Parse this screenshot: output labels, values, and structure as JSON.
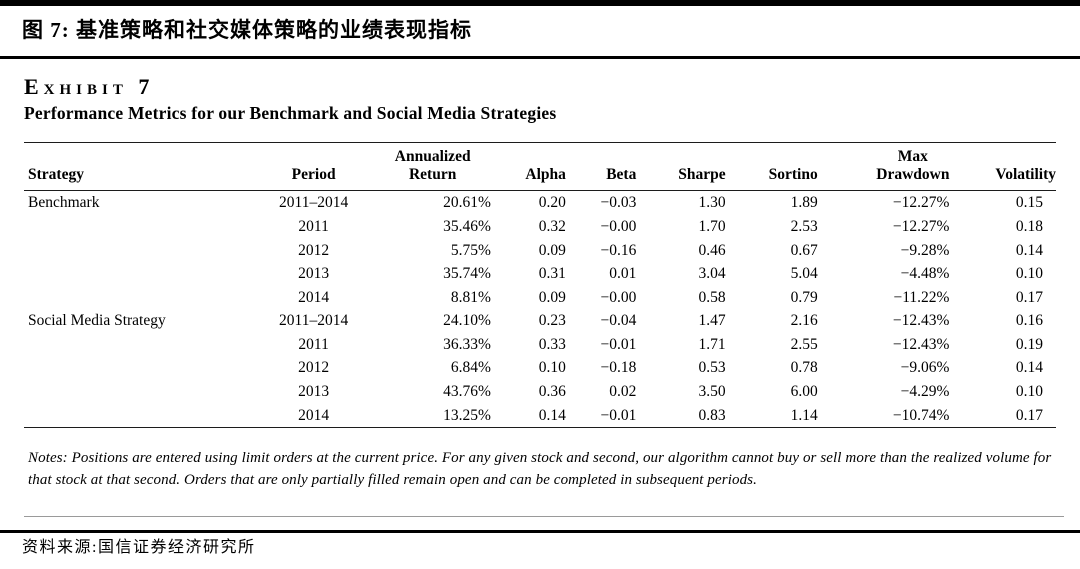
{
  "report": {
    "figure_title": "图 7: 基准策略和社交媒体策略的业绩表现指标",
    "source": "资料来源:国信证券经济研究所"
  },
  "exhibit": {
    "label": "Exhibit 7",
    "subtitle": "Performance Metrics for our Benchmark and Social Media Strategies",
    "notes": "Notes: Positions are entered using limit orders at the current price. For any given stock and second, our algorithm cannot buy or sell more than the realized volume for that stock at that second. Orders that are only partially filled remain open and can be completed in subsequent periods.",
    "table": {
      "columns": [
        {
          "line1": "",
          "line2": "Strategy"
        },
        {
          "line1": "",
          "line2": "Period"
        },
        {
          "line1": "Annualized",
          "line2": "Return"
        },
        {
          "line1": "",
          "line2": "Alpha"
        },
        {
          "line1": "",
          "line2": "Beta"
        },
        {
          "line1": "",
          "line2": "Sharpe"
        },
        {
          "line1": "",
          "line2": "Sortino"
        },
        {
          "line1": "Max",
          "line2": "Drawdown"
        },
        {
          "line1": "",
          "line2": "Volatility"
        }
      ],
      "rows": [
        [
          "Benchmark",
          "2011–2014",
          "20.61%",
          "0.20",
          "−0.03",
          "1.30",
          "1.89",
          "−12.27%",
          "0.15"
        ],
        [
          "",
          "2011",
          "35.46%",
          "0.32",
          "−0.00",
          "1.70",
          "2.53",
          "−12.27%",
          "0.18"
        ],
        [
          "",
          "2012",
          "5.75%",
          "0.09",
          "−0.16",
          "0.46",
          "0.67",
          "−9.28%",
          "0.14"
        ],
        [
          "",
          "2013",
          "35.74%",
          "0.31",
          "0.01",
          "3.04",
          "5.04",
          "−4.48%",
          "0.10"
        ],
        [
          "",
          "2014",
          "8.81%",
          "0.09",
          "−0.00",
          "0.58",
          "0.79",
          "−11.22%",
          "0.17"
        ],
        [
          "Social Media Strategy",
          "2011–2014",
          "24.10%",
          "0.23",
          "−0.04",
          "1.47",
          "2.16",
          "−12.43%",
          "0.16"
        ],
        [
          "",
          "2011",
          "36.33%",
          "0.33",
          "−0.01",
          "1.71",
          "2.55",
          "−12.43%",
          "0.19"
        ],
        [
          "",
          "2012",
          "6.84%",
          "0.10",
          "−0.18",
          "0.53",
          "0.78",
          "−9.06%",
          "0.14"
        ],
        [
          "",
          "2013",
          "43.76%",
          "0.36",
          "0.02",
          "3.50",
          "6.00",
          "−4.29%",
          "0.10"
        ],
        [
          "",
          "2014",
          "13.25%",
          "0.14",
          "−0.01",
          "0.83",
          "1.14",
          "−10.74%",
          "0.17"
        ]
      ]
    }
  }
}
